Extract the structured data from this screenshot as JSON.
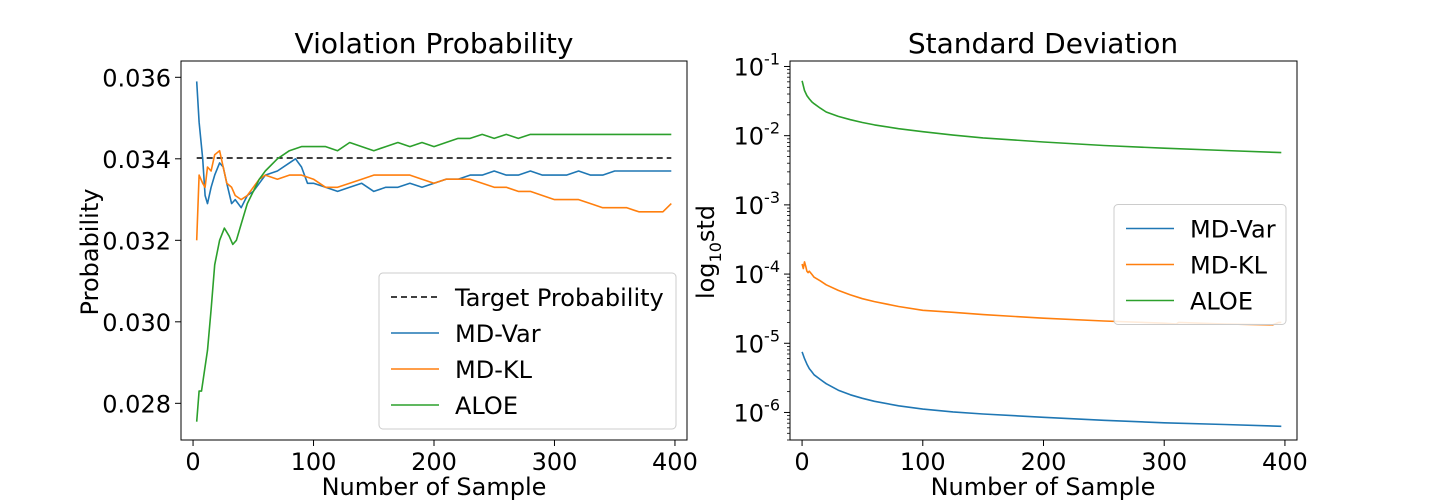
{
  "colors": {
    "blue": "#1f77b4",
    "orange": "#ff7f0e",
    "green": "#2ca02c",
    "target": "#000000"
  },
  "chart_data": [
    {
      "type": "line",
      "title": "Violation Probability",
      "xlabel": "Number of Sample",
      "ylabel": "Probability",
      "xlim": [
        -10,
        410
      ],
      "ylim": [
        0.0271,
        0.0364
      ],
      "xticks": [
        0,
        100,
        200,
        300,
        400
      ],
      "yticks": [
        0.028,
        0.03,
        0.032,
        0.034,
        0.036
      ],
      "ytick_labels": [
        "0.028",
        "0.030",
        "0.032",
        "0.034",
        "0.036"
      ],
      "legend": {
        "position": "lower right"
      },
      "series": [
        {
          "name": "Target Probability",
          "style": "dashed",
          "color": "#000000",
          "x": [
            3,
            397
          ],
          "y": [
            0.03402,
            0.03402
          ]
        },
        {
          "name": "MD-Var",
          "color": "#1f77b4",
          "x": [
            3,
            5,
            8,
            10,
            12,
            15,
            18,
            22,
            25,
            28,
            32,
            35,
            40,
            45,
            50,
            55,
            60,
            70,
            80,
            85,
            90,
            95,
            100,
            110,
            120,
            130,
            140,
            150,
            160,
            170,
            180,
            190,
            200,
            210,
            220,
            230,
            240,
            250,
            260,
            270,
            280,
            290,
            300,
            310,
            320,
            330,
            340,
            350,
            360,
            370,
            380,
            390,
            397
          ],
          "y": [
            0.0359,
            0.0349,
            0.034,
            0.0331,
            0.0329,
            0.0333,
            0.0336,
            0.0339,
            0.0338,
            0.0334,
            0.0329,
            0.033,
            0.0328,
            0.0331,
            0.0332,
            0.0334,
            0.0336,
            0.0337,
            0.0339,
            0.034,
            0.0338,
            0.0334,
            0.0334,
            0.0333,
            0.0332,
            0.0333,
            0.0334,
            0.0332,
            0.0333,
            0.0333,
            0.0334,
            0.0333,
            0.0334,
            0.0335,
            0.0335,
            0.0336,
            0.0336,
            0.0337,
            0.0336,
            0.0336,
            0.0337,
            0.0336,
            0.0336,
            0.0336,
            0.0337,
            0.0336,
            0.0336,
            0.0337,
            0.0337,
            0.0337,
            0.0337,
            0.0337,
            0.0337
          ]
        },
        {
          "name": "MD-KL",
          "color": "#ff7f0e",
          "x": [
            3,
            5,
            8,
            10,
            12,
            15,
            18,
            22,
            25,
            28,
            32,
            35,
            40,
            45,
            50,
            55,
            60,
            70,
            80,
            90,
            100,
            110,
            120,
            130,
            140,
            150,
            160,
            170,
            180,
            190,
            200,
            210,
            220,
            230,
            240,
            250,
            260,
            270,
            280,
            290,
            300,
            310,
            320,
            330,
            340,
            350,
            360,
            370,
            380,
            390,
            397
          ],
          "y": [
            0.032,
            0.0336,
            0.0334,
            0.0333,
            0.0338,
            0.0337,
            0.0341,
            0.0342,
            0.0338,
            0.0334,
            0.0333,
            0.0331,
            0.033,
            0.0331,
            0.0333,
            0.0335,
            0.0336,
            0.0335,
            0.0336,
            0.0336,
            0.0335,
            0.0333,
            0.0333,
            0.0334,
            0.0335,
            0.0336,
            0.0336,
            0.0336,
            0.0336,
            0.0335,
            0.0334,
            0.0335,
            0.0335,
            0.0335,
            0.0334,
            0.0333,
            0.0333,
            0.0332,
            0.0332,
            0.0331,
            0.033,
            0.033,
            0.033,
            0.0329,
            0.0328,
            0.0328,
            0.0328,
            0.0327,
            0.0327,
            0.0327,
            0.0329
          ]
        },
        {
          "name": "ALOE",
          "color": "#2ca02c",
          "x": [
            3,
            5,
            7,
            9,
            12,
            15,
            18,
            22,
            26,
            30,
            33,
            36,
            40,
            45,
            50,
            55,
            60,
            70,
            80,
            90,
            100,
            110,
            120,
            130,
            140,
            150,
            160,
            170,
            180,
            190,
            200,
            210,
            220,
            230,
            240,
            250,
            260,
            270,
            280,
            290,
            300,
            310,
            320,
            330,
            340,
            350,
            360,
            370,
            380,
            390,
            397
          ],
          "y": [
            0.02755,
            0.0283,
            0.0283,
            0.0287,
            0.0293,
            0.0303,
            0.0314,
            0.032,
            0.0323,
            0.0321,
            0.0319,
            0.032,
            0.0324,
            0.0329,
            0.0332,
            0.0335,
            0.0337,
            0.034,
            0.0342,
            0.0343,
            0.0343,
            0.0343,
            0.0342,
            0.0344,
            0.0343,
            0.0342,
            0.0343,
            0.0344,
            0.0343,
            0.0344,
            0.0343,
            0.0344,
            0.0345,
            0.0345,
            0.0346,
            0.0345,
            0.0346,
            0.0345,
            0.0346,
            0.0346,
            0.0346,
            0.0346,
            0.0346,
            0.0346,
            0.0346,
            0.0346,
            0.0346,
            0.0346,
            0.0346,
            0.0346,
            0.0346
          ]
        }
      ]
    },
    {
      "type": "line",
      "title": "Standard Deviation",
      "xlabel": "Number of Sample",
      "ylabel": "log10std",
      "ylabel_parts": [
        "log",
        "10",
        "std"
      ],
      "yscale": "log",
      "xlim": [
        -10,
        410
      ],
      "ylim": [
        4e-07,
        0.12
      ],
      "xticks": [
        0,
        100,
        200,
        300,
        400
      ],
      "yticks": [
        1e-06,
        1e-05,
        0.0001,
        0.001,
        0.01,
        0.1
      ],
      "ytick_base": "10",
      "ytick_exponents": [
        "-6",
        "-5",
        "-4",
        "-3",
        "-2",
        "-1"
      ],
      "legend": {
        "position": "center right"
      },
      "series": [
        {
          "name": "MD-Var",
          "color": "#1f77b4",
          "x": [
            0,
            2,
            4,
            6,
            8,
            10,
            15,
            20,
            30,
            40,
            50,
            60,
            80,
            100,
            125,
            150,
            200,
            250,
            300,
            350,
            397
          ],
          "y": [
            7.5e-06,
            6e-06,
            5e-06,
            4.3e-06,
            3.9e-06,
            3.5e-06,
            3e-06,
            2.6e-06,
            2.1e-06,
            1.8e-06,
            1.6e-06,
            1.45e-06,
            1.25e-06,
            1.12e-06,
            1.02e-06,
            9.5e-07,
            8.5e-07,
            7.7e-07,
            7.1e-07,
            6.7e-07,
            6.3e-07
          ]
        },
        {
          "name": "MD-KL",
          "color": "#ff7f0e",
          "x": [
            0,
            1,
            2,
            3,
            4,
            5,
            6,
            8,
            10,
            15,
            20,
            30,
            40,
            50,
            60,
            80,
            100,
            125,
            150,
            200,
            250,
            300,
            310,
            312,
            350,
            390,
            395,
            397
          ],
          "y": [
            0.00014,
            0.00012,
            0.00015,
            0.00013,
            0.00011,
            0.000105,
            0.00011,
            0.0001,
            9e-05,
            8e-05,
            7e-05,
            5.8e-05,
            5e-05,
            4.4e-05,
            4e-05,
            3.4e-05,
            3e-05,
            2.8e-05,
            2.6e-05,
            2.3e-05,
            2.1e-05,
            1.95e-05,
            1.9e-05,
            2e-05,
            1.9e-05,
            1.85e-05,
            2e-05,
            2e-05
          ]
        },
        {
          "name": "ALOE",
          "color": "#2ca02c",
          "x": [
            0,
            2,
            4,
            6,
            8,
            10,
            15,
            20,
            30,
            40,
            50,
            60,
            80,
            100,
            125,
            150,
            200,
            250,
            300,
            350,
            397
          ],
          "y": [
            0.062,
            0.045,
            0.038,
            0.034,
            0.031,
            0.029,
            0.025,
            0.022,
            0.019,
            0.017,
            0.0155,
            0.0143,
            0.0126,
            0.0114,
            0.0102,
            0.0093,
            0.0081,
            0.0072,
            0.0066,
            0.0061,
            0.0057
          ]
        }
      ]
    }
  ]
}
